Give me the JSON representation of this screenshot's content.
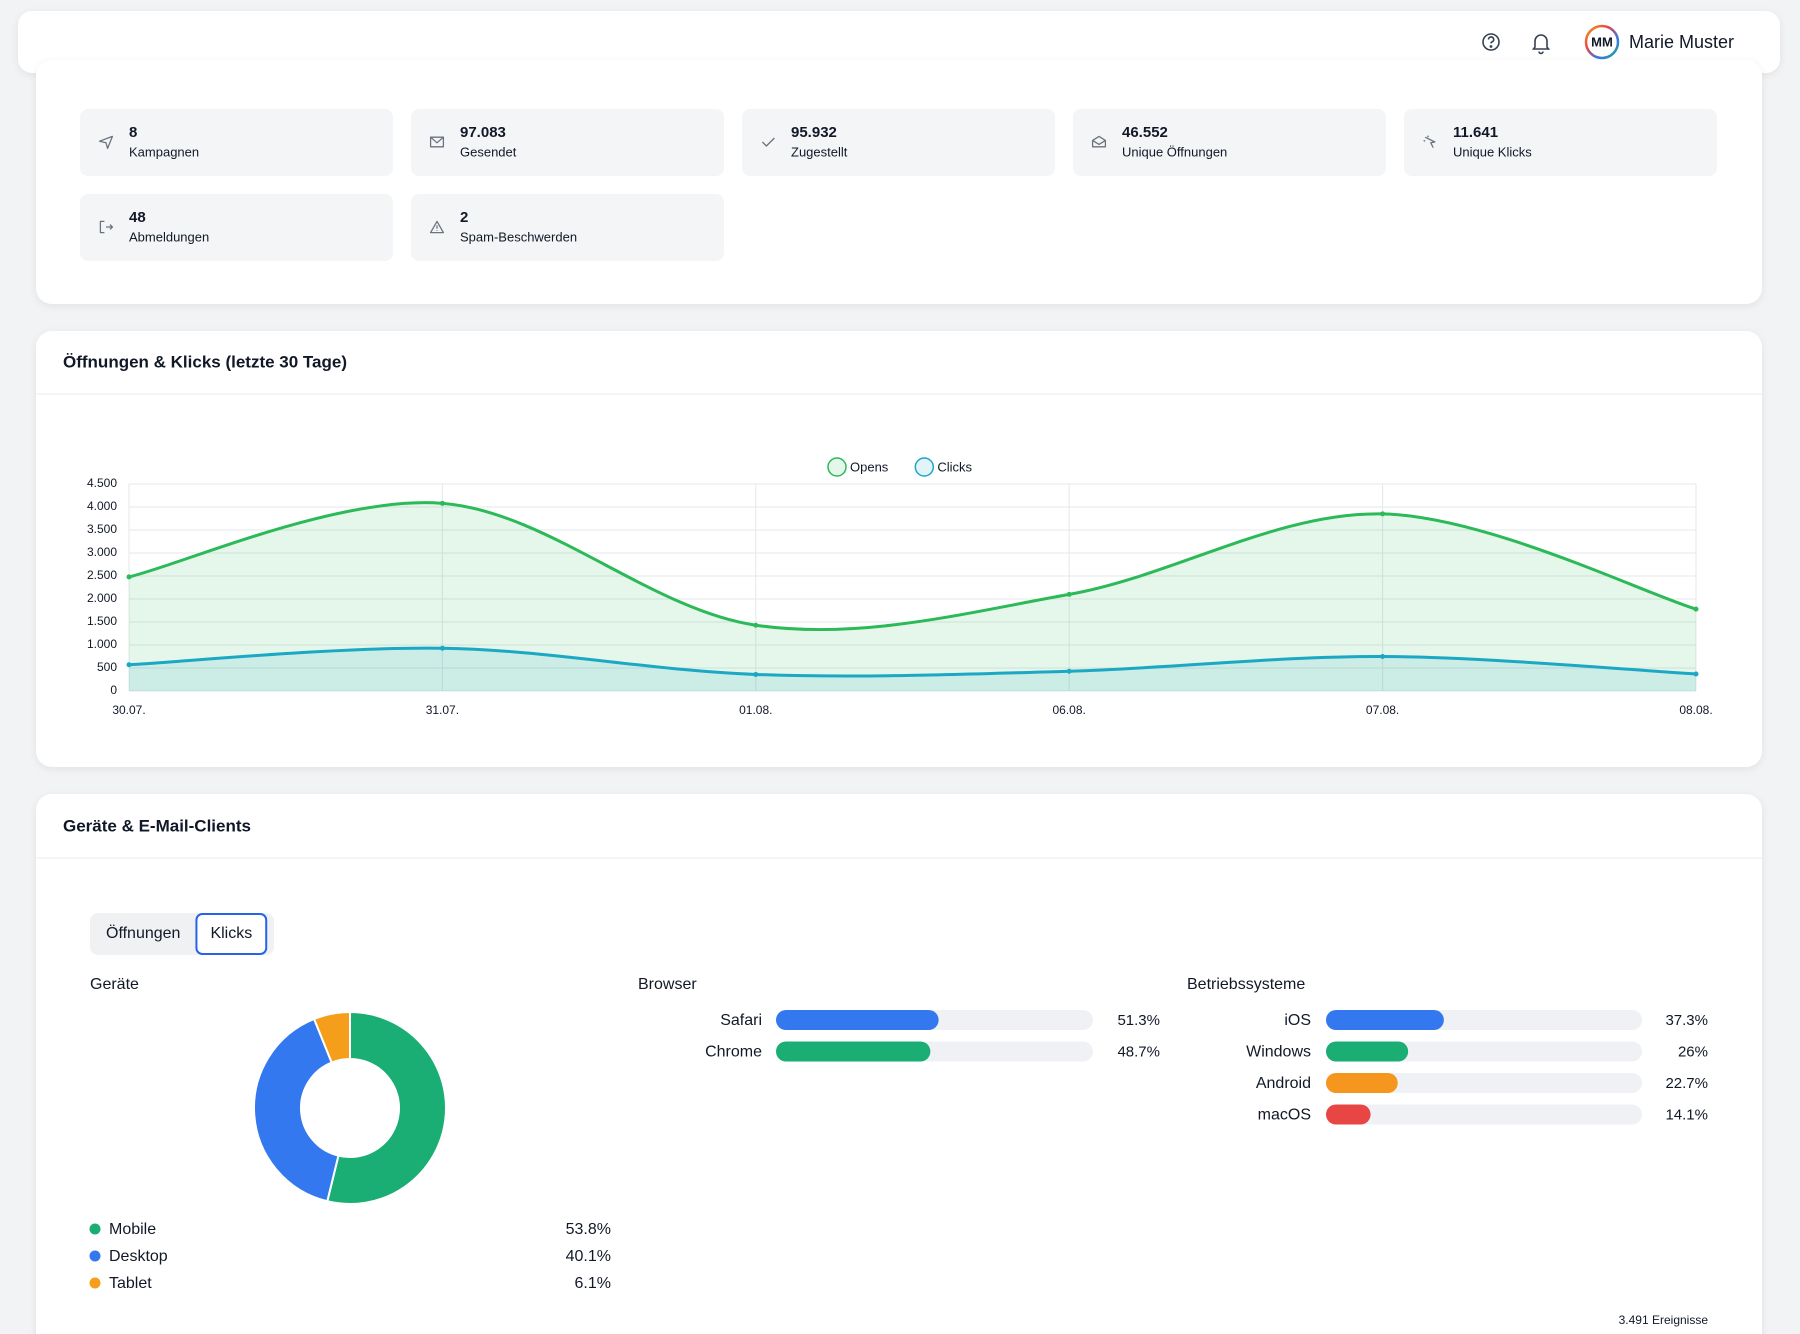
{
  "header": {
    "user_initials": "MM",
    "user_name": "Marie Muster"
  },
  "stats": [
    {
      "value": "8",
      "label": "Kampagnen"
    },
    {
      "value": "97.083",
      "label": "Gesendet"
    },
    {
      "value": "95.932",
      "label": "Zugestellt"
    },
    {
      "value": "46.552",
      "label": "Unique Öffnungen"
    },
    {
      "value": "11.641",
      "label": "Unique Klicks"
    },
    {
      "value": "48",
      "label": "Abmeldungen"
    },
    {
      "value": "2",
      "label": "Spam-Beschwerden"
    }
  ],
  "line_chart": {
    "type": "line",
    "title": "Öffnungen & Klicks (letzte 30 Tage)",
    "categories": [
      "30.07.",
      "31.07.",
      "01.08.",
      "06.08.",
      "07.08.",
      "08.08."
    ],
    "series": [
      {
        "name": "Opens",
        "color": "#2cb957",
        "values": [
          2480,
          4080,
          1430,
          2100,
          3850,
          1780
        ]
      },
      {
        "name": "Clicks",
        "color": "#1ba8c4",
        "values": [
          570,
          930,
          360,
          430,
          750,
          370
        ]
      }
    ],
    "ylim": [
      0,
      4500
    ],
    "yticks": [
      0,
      500,
      {
        "value": 1000,
        "label": "1.000"
      },
      {
        "value": 1500,
        "label": "1.500"
      },
      {
        "value": 2000,
        "label": "2.000"
      },
      {
        "value": 2500,
        "label": "2.500"
      },
      {
        "value": 3000,
        "label": "3.000"
      },
      {
        "value": 3500,
        "label": "3.500"
      },
      {
        "value": 4000,
        "label": "4.000"
      },
      {
        "value": 4500,
        "label": "4.500"
      }
    ],
    "grid": true
  },
  "devices": {
    "title": "Geräte & E-Mail-Clients",
    "tabs": [
      "Öffnungen",
      "Klicks"
    ],
    "active_tab": 1,
    "donut": {
      "type": "pie",
      "title": "Geräte",
      "categories": [
        "Mobile",
        "Desktop",
        "Tablet"
      ],
      "values": [
        53.8,
        40.1,
        6.1
      ],
      "value_labels": [
        "53.8%",
        "40.1%",
        "6.1%"
      ],
      "colors": [
        "#1aae74",
        "#3478f0",
        "#f59e1b"
      ]
    },
    "browser": {
      "type": "bar",
      "title": "Browser",
      "categories": [
        "Safari",
        "Chrome"
      ],
      "values": [
        51.3,
        48.7
      ],
      "value_labels": [
        "51.3%",
        "48.7%"
      ],
      "colors": [
        "#3478f0",
        "#1aae74"
      ],
      "xlim": [
        0,
        100
      ]
    },
    "os": {
      "type": "bar",
      "title": "Betriebssysteme",
      "categories": [
        "iOS",
        "Windows",
        "Android",
        "macOS"
      ],
      "values": [
        37.3,
        26,
        22.7,
        14.1
      ],
      "value_labels": [
        "37.3%",
        "26%",
        "22.7%",
        "14.1%"
      ],
      "colors": [
        "#3478f0",
        "#1aae74",
        "#f5961e",
        "#e84545"
      ],
      "xlim": [
        0,
        100
      ]
    },
    "footnote": "3.491 Ereignisse"
  }
}
